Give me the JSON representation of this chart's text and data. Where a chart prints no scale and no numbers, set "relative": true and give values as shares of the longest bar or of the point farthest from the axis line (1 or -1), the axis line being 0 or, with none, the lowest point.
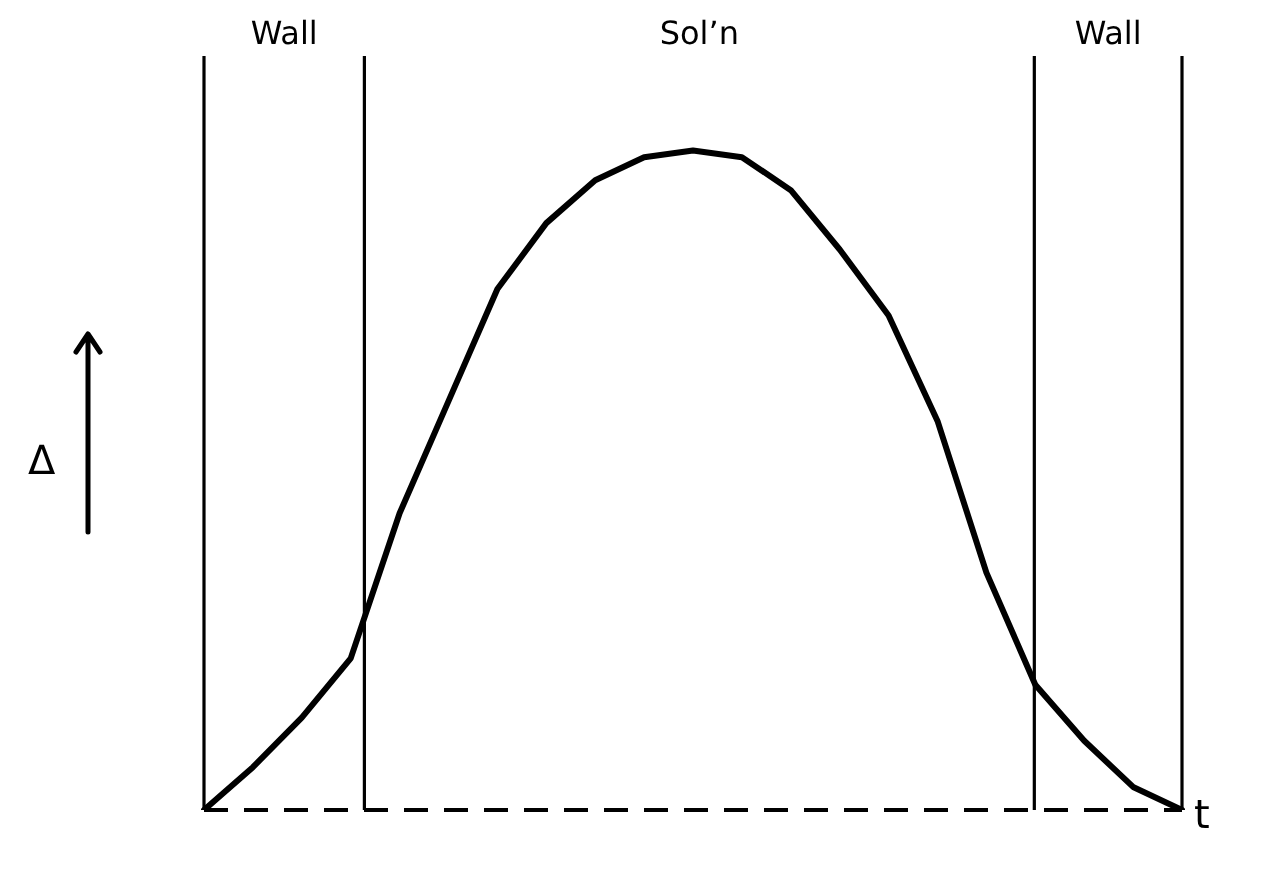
{
  "chart_data": {
    "type": "line",
    "relative": true,
    "xlabel": "t",
    "ylabel": "Δ",
    "color": "#000000",
    "marker": "none",
    "line_style": "solid",
    "categories": [
      null,
      null,
      null,
      null,
      null,
      null,
      null,
      null,
      null,
      null,
      null,
      null,
      null,
      null,
      null,
      null,
      null,
      null,
      null,
      null,
      null
    ],
    "values": [
      0,
      0.065,
      0.14,
      0.23,
      0.45,
      0.62,
      0.79,
      0.89,
      0.955,
      0.99,
      1,
      0.99,
      0.94,
      0.85,
      0.75,
      0.59,
      0.36,
      0.19,
      0.105,
      0.035,
      0
    ],
    "annotations": [
      "Wall",
      "Sol’n",
      "Wall"
    ]
  }
}
